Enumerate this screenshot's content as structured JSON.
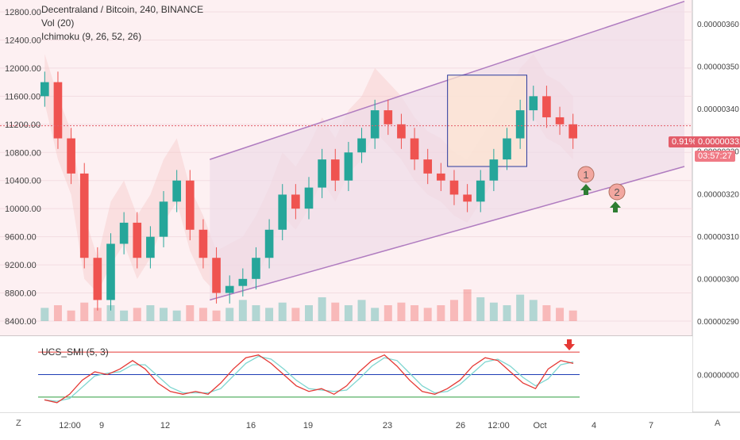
{
  "legend": {
    "symbol_line": "Decentraland / Bitcoin, 240, BINANCE",
    "vol": "Vol (20)",
    "ichimoku": "Ichimoku (9, 26, 52, 26)",
    "oscillator": "UCS_SMI (5, 3)"
  },
  "price_badges": {
    "percent": "0.91%",
    "price": "0.00000332",
    "countdown": "03:57:27"
  },
  "corner_left": "Z",
  "corner_right": "A",
  "annotations": {
    "marker1": "1",
    "marker2": "2"
  },
  "colors": {
    "up": "#26a69a",
    "down": "#ef5350",
    "cloud": "#f6c9c9",
    "channel": "#b07cc0",
    "channel_fill": "#eedbe8",
    "smi_line": "#e53935",
    "smi_signal": "#7fd6d0",
    "level_top": "#e53935",
    "level_mid": "#1e3db5",
    "level_bot": "#2e9e3e"
  },
  "chart_data": [
    {
      "type": "candlestick",
      "left_axis_ticks": [
        "12800.00",
        "12400.00",
        "12000.00",
        "11600.00",
        "11200.00",
        "10800.00",
        "10400.00",
        "10000.00",
        "9600.00",
        "9200.00",
        "8800.00",
        "8400.00"
      ],
      "left_axis_values": [
        12800,
        12400,
        12000,
        11600,
        11200,
        10800,
        10400,
        10000,
        9600,
        9200,
        8800,
        8400
      ],
      "right_axis_ticks": [
        "0.00000360",
        "0.00000350",
        "0.00000340",
        "0.00000330",
        "0.00000320",
        "0.00000310",
        "0.00000300",
        "0.00000290"
      ],
      "right_axis_values": [
        360,
        350,
        340,
        330,
        320,
        310,
        300,
        290
      ],
      "x_ticks": [
        "12:00",
        "9",
        "12",
        "16",
        "19",
        "23",
        "26",
        "12:00",
        "Oct",
        "4",
        "7"
      ],
      "x_tick_positions": [
        1,
        2,
        4,
        6.7,
        8.5,
        11,
        13.3,
        14.5,
        15.8,
        17.5,
        19.3
      ],
      "current_price": 11180,
      "closes": [
        11800,
        11000,
        10500,
        9300,
        8700,
        9500,
        9800,
        9300,
        9600,
        10100,
        10400,
        9700,
        9300,
        8800,
        8900,
        9000,
        9300,
        9700,
        10200,
        10000,
        10300,
        10700,
        10400,
        10800,
        11000,
        11400,
        11200,
        11000,
        10700,
        10500,
        10400,
        10200,
        10100,
        10400,
        10700,
        11000,
        11400,
        11600,
        11300,
        11200,
        11000
      ],
      "volume": [
        5,
        6,
        4,
        7,
        5,
        6,
        4,
        5,
        6,
        5,
        4,
        6,
        5,
        4,
        5,
        8,
        6,
        5,
        7,
        5,
        6,
        9,
        7,
        6,
        8,
        5,
        6,
        7,
        6,
        5,
        6,
        8,
        12,
        9,
        7,
        6,
        10,
        8,
        6,
        5,
        4
      ],
      "box": {
        "x_start": 30.5,
        "x_end": 36.5,
        "y_low": 10600,
        "y_high": 11900
      },
      "channel": {
        "upper": [
          [
            12.5,
            10700
          ],
          [
            40,
            12950
          ]
        ],
        "lower": [
          [
            12.5,
            8700
          ],
          [
            40,
            10600
          ]
        ]
      }
    },
    {
      "type": "line",
      "name": "UCS_SMI (5, 3)",
      "levels": {
        "top": 0.8,
        "mid": 0.0,
        "bottom": -0.8
      },
      "smi": [
        -0.9,
        -1.0,
        -0.7,
        -0.2,
        0.1,
        0.0,
        0.2,
        0.5,
        0.2,
        -0.3,
        -0.6,
        -0.7,
        -0.6,
        -0.7,
        -0.3,
        0.2,
        0.6,
        0.7,
        0.4,
        0.0,
        -0.4,
        -0.6,
        -0.5,
        -0.7,
        -0.4,
        0.1,
        0.5,
        0.7,
        0.3,
        -0.2,
        -0.6,
        -0.7,
        -0.5,
        -0.2,
        0.3,
        0.6,
        0.5,
        0.1,
        -0.3,
        -0.5,
        0.2,
        0.5,
        0.4
      ]
    }
  ]
}
